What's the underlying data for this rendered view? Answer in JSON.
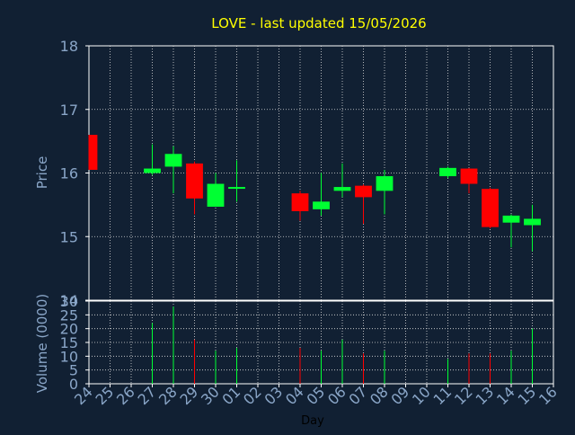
{
  "chart_data": {
    "type": "candlestick",
    "title": "LOVE - last updated 15/05/2026",
    "xlabel": "Day",
    "ylabel_price": "Price",
    "ylabel_volume": "Volume (0000)",
    "categories": [
      "24",
      "25",
      "26",
      "27",
      "28",
      "29",
      "30",
      "01",
      "02",
      "03",
      "04",
      "05",
      "06",
      "07",
      "08",
      "09",
      "10",
      "11",
      "12",
      "13",
      "14",
      "15",
      "16"
    ],
    "price_ylim": [
      14,
      18
    ],
    "price_ticks": [
      "14",
      "15",
      "16",
      "17",
      "18"
    ],
    "volume_ylim": [
      0,
      30
    ],
    "volume_ticks": [
      "0",
      "5",
      "10",
      "15",
      "20",
      "25",
      "30"
    ],
    "grid": true,
    "candles": [
      {
        "day": "24",
        "open": 16.6,
        "close": 16.05,
        "high": 16.6,
        "low": 16.05,
        "volume": null
      },
      {
        "day": "27",
        "open": 16.0,
        "close": 16.07,
        "high": 16.45,
        "low": 15.97,
        "volume": 22
      },
      {
        "day": "28",
        "open": 16.1,
        "close": 16.3,
        "high": 16.42,
        "low": 15.68,
        "volume": 28
      },
      {
        "day": "29",
        "open": 16.15,
        "close": 15.6,
        "high": 16.18,
        "low": 15.35,
        "volume": 16
      },
      {
        "day": "30",
        "open": 15.47,
        "close": 15.83,
        "high": 16.0,
        "low": 15.47,
        "volume": 12
      },
      {
        "day": "01",
        "open": 15.78,
        "close": 15.78,
        "high": 16.2,
        "low": 15.55,
        "volume": 13
      },
      {
        "day": "04",
        "open": 15.68,
        "close": 15.4,
        "high": 15.72,
        "low": 15.25,
        "volume": 13
      },
      {
        "day": "05",
        "open": 15.43,
        "close": 15.55,
        "high": 16.0,
        "low": 15.33,
        "volume": 12
      },
      {
        "day": "06",
        "open": 15.72,
        "close": 15.78,
        "high": 16.15,
        "low": 15.62,
        "volume": 16
      },
      {
        "day": "07",
        "open": 15.8,
        "close": 15.62,
        "high": 15.82,
        "low": 15.2,
        "volume": 11
      },
      {
        "day": "08",
        "open": 15.72,
        "close": 15.95,
        "high": 16.05,
        "low": 15.35,
        "volume": 12
      },
      {
        "day": "11",
        "open": 15.95,
        "close": 16.08,
        "high": 16.1,
        "low": 15.92,
        "volume": 9
      },
      {
        "day": "12",
        "open": 16.07,
        "close": 15.83,
        "high": 16.08,
        "low": 15.68,
        "volume": 11
      },
      {
        "day": "13",
        "open": 15.75,
        "close": 15.15,
        "high": 15.77,
        "low": 15.13,
        "volume": 11
      },
      {
        "day": "14",
        "open": 15.22,
        "close": 15.33,
        "high": 15.35,
        "low": 14.83,
        "volume": 12
      },
      {
        "day": "15",
        "open": 15.18,
        "close": 15.28,
        "high": 15.5,
        "low": 14.77,
        "volume": 20
      }
    ],
    "colors": {
      "background": "#112033",
      "up": "#00ff33",
      "down": "#ff0000",
      "title": "#ffff00",
      "axis_text": "#8aa6c8",
      "grid": "#dddddd"
    }
  }
}
